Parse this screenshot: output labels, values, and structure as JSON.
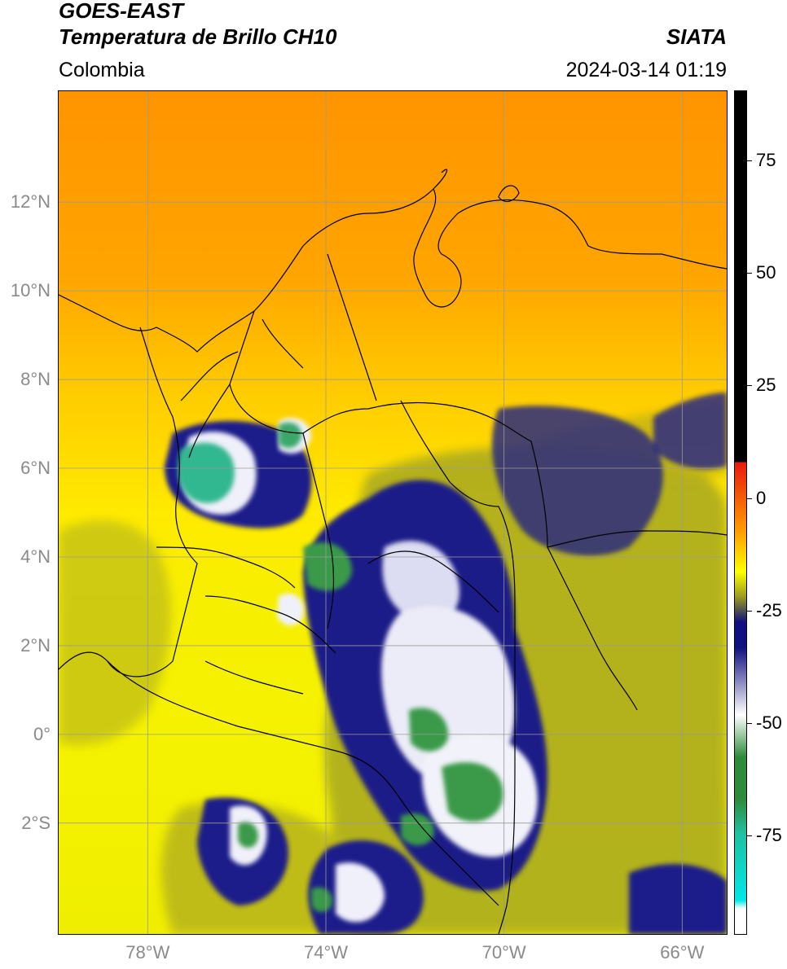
{
  "header": {
    "satellite": "GOES-EAST",
    "product": "Temperatura de Brillo CH10",
    "organization": "SIATA",
    "region": "Colombia",
    "datetime": "2024-03-14 01:19"
  },
  "map": {
    "lat_range": [
      -4.5,
      14.5
    ],
    "lon_range": [
      -80,
      -65
    ],
    "lat_labels": [
      "12°N",
      "10°N",
      "8°N",
      "6°N",
      "4°N",
      "2°N",
      "0°",
      "2°S"
    ],
    "lon_labels": [
      "78°W",
      "74°W",
      "70°W",
      "66°W"
    ],
    "gridline_color": "#9a9a9a"
  },
  "colorbar": {
    "labels": [
      "75",
      "50",
      "25",
      "0",
      "-25",
      "-50",
      "-75"
    ],
    "colors": {
      "black": "#000000",
      "red": "#e8190f",
      "orange": "#ff9900",
      "yellow": "#ffff00",
      "olive": "#9a9a20",
      "navy": "#101080",
      "white": "#ffffff",
      "green": "#2e8b3a",
      "teal": "#20c0a0",
      "cyan": "#00e8e8"
    }
  }
}
